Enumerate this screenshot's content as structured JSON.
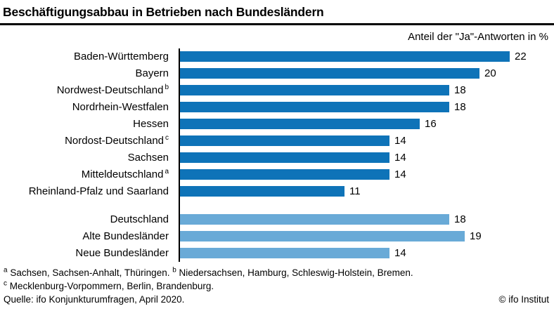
{
  "header": {
    "title": "Beschäftigungsabbau in Betrieben nach Bundesländern",
    "subtitle": "Anteil der \"Ja\"-Antworten in %"
  },
  "chart_data": {
    "type": "bar",
    "orientation": "horizontal",
    "title": "Beschäftigungsabbau in Betrieben nach Bundesländern",
    "subtitle": "Anteil der \"Ja\"-Antworten in %",
    "unit": "%",
    "xlim": [
      0,
      23
    ],
    "grid": false,
    "legend": "none",
    "colors": {
      "regions": "#0e73b8",
      "aggregates": "#69aad7"
    },
    "groups": [
      {
        "name": "regions",
        "color": "#0e73b8",
        "bars": [
          {
            "label": "Baden-Württemberg",
            "sup": "",
            "value": 22
          },
          {
            "label": "Bayern",
            "sup": "",
            "value": 20
          },
          {
            "label": "Nordwest-Deutschland",
            "sup": "b",
            "value": 18
          },
          {
            "label": "Nordrhein-Westfalen",
            "sup": "",
            "value": 18
          },
          {
            "label": "Hessen",
            "sup": "",
            "value": 16
          },
          {
            "label": "Nordost-Deutschland",
            "sup": "c",
            "value": 14
          },
          {
            "label": "Sachsen",
            "sup": "",
            "value": 14
          },
          {
            "label": "Mitteldeutschland",
            "sup": "a",
            "value": 14
          },
          {
            "label": "Rheinland-Pfalz und Saarland",
            "sup": "",
            "value": 11
          }
        ]
      },
      {
        "name": "aggregates",
        "color": "#69aad7",
        "bars": [
          {
            "label": "Deutschland",
            "sup": "",
            "value": 18
          },
          {
            "label": "Alte Bundesländer",
            "sup": "",
            "value": 19
          },
          {
            "label": "Neue Bundesländer",
            "sup": "",
            "value": 14
          }
        ]
      }
    ]
  },
  "footnotes": {
    "line1": [
      {
        "sup": "a",
        "text": " Sachsen, Sachsen-Anhalt, Thüringen. "
      },
      {
        "sup": "b",
        "text": " Niedersachsen, Hamburg, Schleswig-Holstein, Bremen."
      }
    ],
    "line2": [
      {
        "sup": "c",
        "text": " Mecklenburg-Vorpommern, Berlin, Brandenburg."
      }
    ],
    "source": "Quelle: ifo Konjunkturumfragen, April 2020.",
    "copyright": "© ifo Institut"
  }
}
